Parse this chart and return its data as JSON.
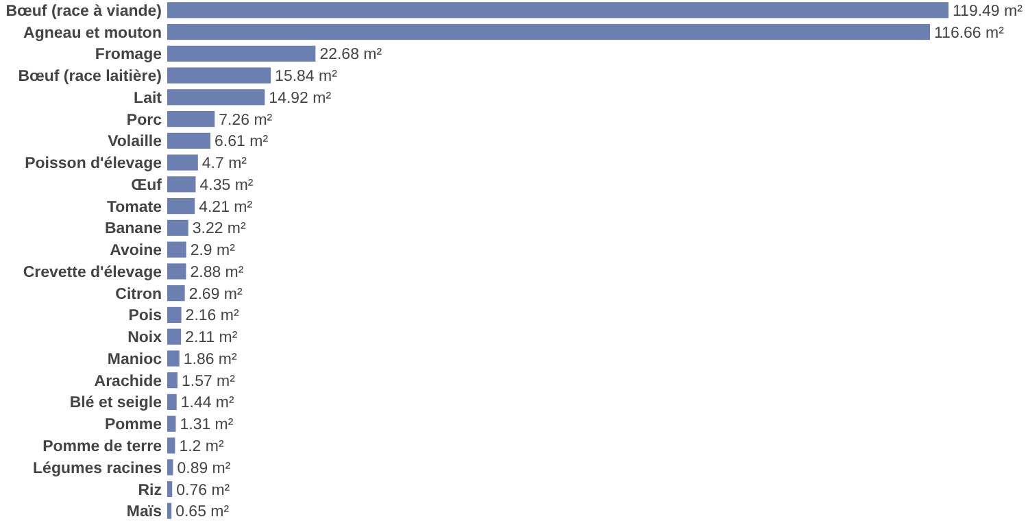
{
  "chart_data": {
    "type": "bar",
    "orientation": "horizontal",
    "color": "#6b80b0",
    "categories": [
      "Bœuf (race à viande)",
      "Agneau et mouton",
      "Fromage",
      "Bœuf (race laitière)",
      "Lait",
      "Porc",
      "Volaille",
      "Poisson d'élevage",
      "Œuf",
      "Tomate",
      "Banane",
      "Avoine",
      "Crevette d'élevage",
      "Citron",
      "Pois",
      "Noix",
      "Manioc",
      "Arachide",
      "Blé et seigle",
      "Pomme",
      "Pomme de terre",
      "Légumes racines",
      "Riz",
      "Maïs"
    ],
    "values": [
      119.49,
      116.66,
      22.68,
      15.84,
      14.92,
      7.26,
      6.61,
      4.7,
      4.35,
      4.21,
      3.22,
      2.9,
      2.88,
      2.69,
      2.16,
      2.11,
      1.86,
      1.57,
      1.44,
      1.31,
      1.2,
      0.89,
      0.76,
      0.65
    ],
    "value_labels": [
      "119.49 m²",
      "116.66 m²",
      "22.68 m²",
      "15.84 m²",
      "14.92 m²",
      "7.26 m²",
      "6.61 m²",
      "4.7 m²",
      "4.35 m²",
      "4.21 m²",
      "3.22 m²",
      "2.9 m²",
      "2.88 m²",
      "2.69 m²",
      "2.16 m²",
      "2.11 m²",
      "1.86 m²",
      "1.57 m²",
      "1.44 m²",
      "1.31 m²",
      "1.2 m²",
      "0.89 m²",
      "0.76 m²",
      "0.65 m²"
    ]
  }
}
